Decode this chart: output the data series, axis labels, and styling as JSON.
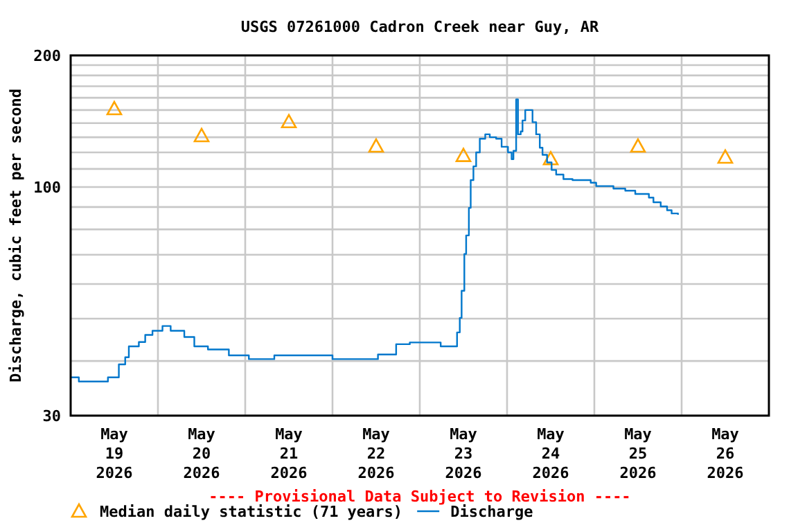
{
  "chart_data": {
    "type": "step",
    "title": "USGS 07261000 Cadron Creek near Guy, AR",
    "ylabel": "Discharge, cubic feet per second",
    "annotations": [
      "---- Provisional Data Subject to Revision ----"
    ],
    "log": "y",
    "grid": true,
    "legend": "bottom",
    "xlim": [
      "2026-05-19T00:00",
      "2026-05-27T00:00"
    ],
    "xticks": [
      {
        "value": "2026-05-19T12:00",
        "label": "May\n19\n2026"
      },
      {
        "value": "2026-05-20T00:00",
        "label": null
      },
      {
        "value": "2026-05-20T12:00",
        "label": "May\n20\n2026"
      },
      {
        "value": "2026-05-21T00:00",
        "label": null
      },
      {
        "value": "2026-05-21T12:00",
        "label": "May\n21\n2026"
      },
      {
        "value": "2026-05-22T00:00",
        "label": null
      },
      {
        "value": "2026-05-22T12:00",
        "label": "May\n22\n2026"
      },
      {
        "value": "2026-05-23T00:00",
        "label": null
      },
      {
        "value": "2026-05-23T12:00",
        "label": "May\n23\n2026"
      },
      {
        "value": "2026-05-24T00:00",
        "label": null
      },
      {
        "value": "2026-05-24T12:00",
        "label": "May\n24\n2026"
      },
      {
        "value": "2026-05-25T00:00",
        "label": null
      },
      {
        "value": "2026-05-25T12:00",
        "label": "May\n25\n2026"
      },
      {
        "value": "2026-05-26T00:00",
        "label": null
      },
      {
        "value": "2026-05-26T12:00",
        "label": "May\n26\n2026"
      }
    ],
    "ylim": [
      30,
      200
    ],
    "yticks": [
      30,
      {
        "value": 40,
        "label": null
      },
      {
        "value": 50,
        "label": null
      },
      {
        "value": 60,
        "label": null
      },
      {
        "value": 70,
        "label": null
      },
      {
        "value": 80,
        "label": null
      },
      {
        "value": 90,
        "label": null
      },
      100,
      {
        "value": 110,
        "label": null
      },
      {
        "value": 120,
        "label": null
      },
      {
        "value": 130,
        "label": null
      },
      {
        "value": 140,
        "label": null
      },
      {
        "value": 150,
        "label": null
      },
      {
        "value": 160,
        "label": null
      },
      {
        "value": 170,
        "label": null
      },
      {
        "value": 180,
        "label": null
      },
      {
        "value": 190,
        "label": null
      },
      200
    ],
    "series": [
      {
        "name": "Median daily statistic (71 years)",
        "type": "scatter",
        "marker": "triangle",
        "color": "#ffa500",
        "x": [
          "2026-05-19T12:00",
          "2026-05-20T12:00",
          "2026-05-21T12:00",
          "2026-05-22T12:00",
          "2026-05-23T12:00",
          "2026-05-24T12:00",
          "2026-05-25T12:00",
          "2026-05-26T12:00"
        ],
        "values": [
          151,
          131,
          141,
          124,
          118,
          116,
          124,
          117
        ]
      },
      {
        "name": "Discharge",
        "color": "#0077cc",
        "x": [
          "2026-05-19T00:00",
          "2026-05-19T02:15",
          "2026-05-19T10:15",
          "2026-05-19T13:15",
          "2026-05-19T15:00",
          "2026-05-19T16:00",
          "2026-05-19T18:45",
          "2026-05-19T20:30",
          "2026-05-19T22:30",
          "2026-05-20T01:15",
          "2026-05-20T03:30",
          "2026-05-20T07:15",
          "2026-05-20T10:00",
          "2026-05-20T13:45",
          "2026-05-20T19:30",
          "2026-05-21T01:00",
          "2026-05-21T08:00",
          "2026-05-22T00:00",
          "2026-05-22T12:30",
          "2026-05-22T17:30",
          "2026-05-22T21:15",
          "2026-05-23T05:45",
          "2026-05-23T10:15",
          "2026-05-23T11:00",
          "2026-05-23T11:30",
          "2026-05-23T12:15",
          "2026-05-23T12:45",
          "2026-05-23T13:30",
          "2026-05-23T14:00",
          "2026-05-23T14:45",
          "2026-05-23T15:30",
          "2026-05-23T16:30",
          "2026-05-23T18:00",
          "2026-05-23T19:15",
          "2026-05-23T21:00",
          "2026-05-23T22:30",
          "2026-05-24T00:15",
          "2026-05-24T01:15",
          "2026-05-24T01:45",
          "2026-05-24T02:30",
          "2026-05-24T03:00",
          "2026-05-24T03:45",
          "2026-05-24T04:15",
          "2026-05-24T05:00",
          "2026-05-24T07:00",
          "2026-05-24T08:00",
          "2026-05-24T09:00",
          "2026-05-24T09:45",
          "2026-05-24T11:00",
          "2026-05-24T12:15",
          "2026-05-24T13:30",
          "2026-05-24T15:30",
          "2026-05-24T18:00",
          "2026-05-24T23:00",
          "2026-05-25T00:30",
          "2026-05-25T05:15",
          "2026-05-25T08:30",
          "2026-05-25T11:15",
          "2026-05-25T15:00",
          "2026-05-25T16:15",
          "2026-05-25T18:15",
          "2026-05-25T20:00",
          "2026-05-25T21:15",
          "2026-05-25T23:00"
        ],
        "values": [
          36.7,
          35.9,
          36.7,
          39.3,
          40.8,
          43.2,
          44.2,
          45.9,
          46.9,
          48.1,
          46.9,
          45.4,
          43.2,
          42.5,
          41.2,
          40.4,
          41.2,
          40.4,
          41.4,
          43.7,
          44.1,
          43.2,
          46.5,
          50.2,
          57.9,
          70.3,
          77.5,
          89.6,
          103.7,
          111.5,
          120,
          129,
          132,
          130,
          129,
          123.6,
          120,
          115.8,
          121,
          158.7,
          132,
          134,
          142,
          150,
          140.7,
          132,
          123,
          118.5,
          113.8,
          109.4,
          106.8,
          104.3,
          103.7,
          102.3,
          100.5,
          99.2,
          98.1,
          96.4,
          94.6,
          92.3,
          90.3,
          88.5,
          87.0,
          86.4
        ]
      }
    ]
  }
}
